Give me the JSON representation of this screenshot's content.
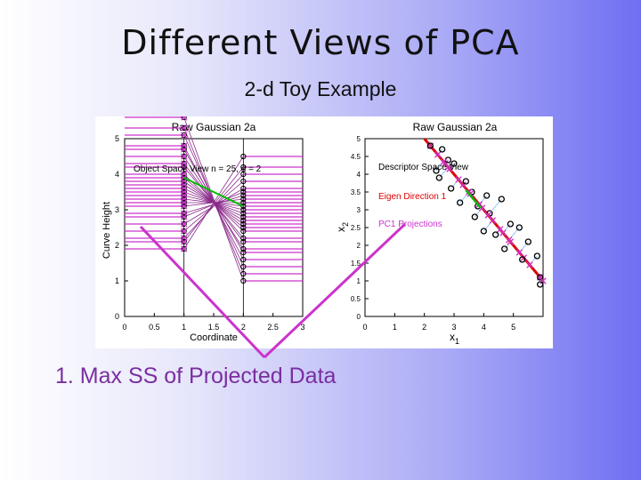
{
  "slide": {
    "title": "Different Views of PCA",
    "subtitle": "2-d Toy Example",
    "bullet": "1.  Max SS of Projected Data"
  },
  "colors": {
    "accent": "#cc44cc",
    "curve": "#cc33cc",
    "eigen": "#dd0000",
    "projection": "#00bb00",
    "text_bullet": "#7a2ea0"
  },
  "chart_data": [
    {
      "type": "line",
      "title": "Raw Gaussian 2a",
      "annotation": "Object Space View n = 25, d = 2",
      "xlabel": "Coordinate",
      "ylabel": "Curve Height",
      "xlim": [
        0,
        3
      ],
      "ylim": [
        0,
        5
      ],
      "x_ticks": [
        "0",
        "0.5",
        "1",
        "1.5",
        "2",
        "2.5",
        "3"
      ],
      "y_ticks": [
        "0",
        "1",
        "2",
        "3",
        "4",
        "5"
      ],
      "x": [
        1,
        2
      ],
      "curves": [
        [
          5.6,
          1.0
        ],
        [
          5.3,
          1.2
        ],
        [
          5.1,
          1.4
        ],
        [
          4.8,
          1.6
        ],
        [
          4.7,
          1.8
        ],
        [
          4.5,
          1.9
        ],
        [
          4.3,
          2.1
        ],
        [
          4.2,
          2.2
        ],
        [
          4.0,
          2.4
        ],
        [
          3.9,
          2.5
        ],
        [
          3.8,
          2.6
        ],
        [
          3.7,
          2.7
        ],
        [
          3.6,
          2.8
        ],
        [
          3.5,
          2.9
        ],
        [
          3.4,
          3.0
        ],
        [
          3.3,
          3.1
        ],
        [
          3.2,
          3.2
        ],
        [
          3.1,
          3.3
        ],
        [
          2.9,
          3.4
        ],
        [
          2.8,
          3.5
        ],
        [
          2.6,
          3.6
        ],
        [
          2.4,
          3.8
        ],
        [
          2.2,
          4.0
        ],
        [
          2.1,
          4.2
        ],
        [
          1.9,
          4.5
        ]
      ],
      "grid": false
    },
    {
      "type": "scatter",
      "title": "Raw Gaussian 2a",
      "annotations": [
        "Descriptor Space View",
        "Eigen Direction 1",
        "PC1 Projections"
      ],
      "xlabel": "x1",
      "ylabel": "x2",
      "xlim": [
        0,
        6
      ],
      "ylim": [
        0,
        5
      ],
      "x_ticks": [
        "0",
        "1",
        "2",
        "3",
        "4",
        "5"
      ],
      "y_ticks": [
        "0",
        "0.5",
        "1",
        "1.5",
        "2",
        "2.5",
        "3",
        "3.5",
        "4",
        "4.5",
        "5"
      ],
      "points": [
        [
          2.2,
          4.8
        ],
        [
          2.6,
          4.7
        ],
        [
          2.8,
          4.4
        ],
        [
          2.4,
          4.1
        ],
        [
          2.5,
          3.9
        ],
        [
          3.0,
          4.3
        ],
        [
          3.4,
          3.8
        ],
        [
          3.6,
          3.5
        ],
        [
          2.9,
          3.6
        ],
        [
          3.2,
          3.2
        ],
        [
          3.8,
          3.1
        ],
        [
          4.1,
          3.4
        ],
        [
          4.2,
          2.9
        ],
        [
          4.6,
          3.3
        ],
        [
          3.7,
          2.8
        ],
        [
          4.0,
          2.4
        ],
        [
          4.9,
          2.6
        ],
        [
          4.4,
          2.3
        ],
        [
          5.2,
          2.5
        ],
        [
          5.5,
          2.1
        ],
        [
          4.7,
          1.9
        ],
        [
          5.8,
          1.7
        ],
        [
          5.3,
          1.6
        ],
        [
          5.9,
          1.1
        ],
        [
          5.9,
          0.9
        ]
      ],
      "eigen_direction": [
        [
          2.0,
          5.0
        ],
        [
          6.0,
          1.0
        ]
      ],
      "grid": false
    }
  ]
}
